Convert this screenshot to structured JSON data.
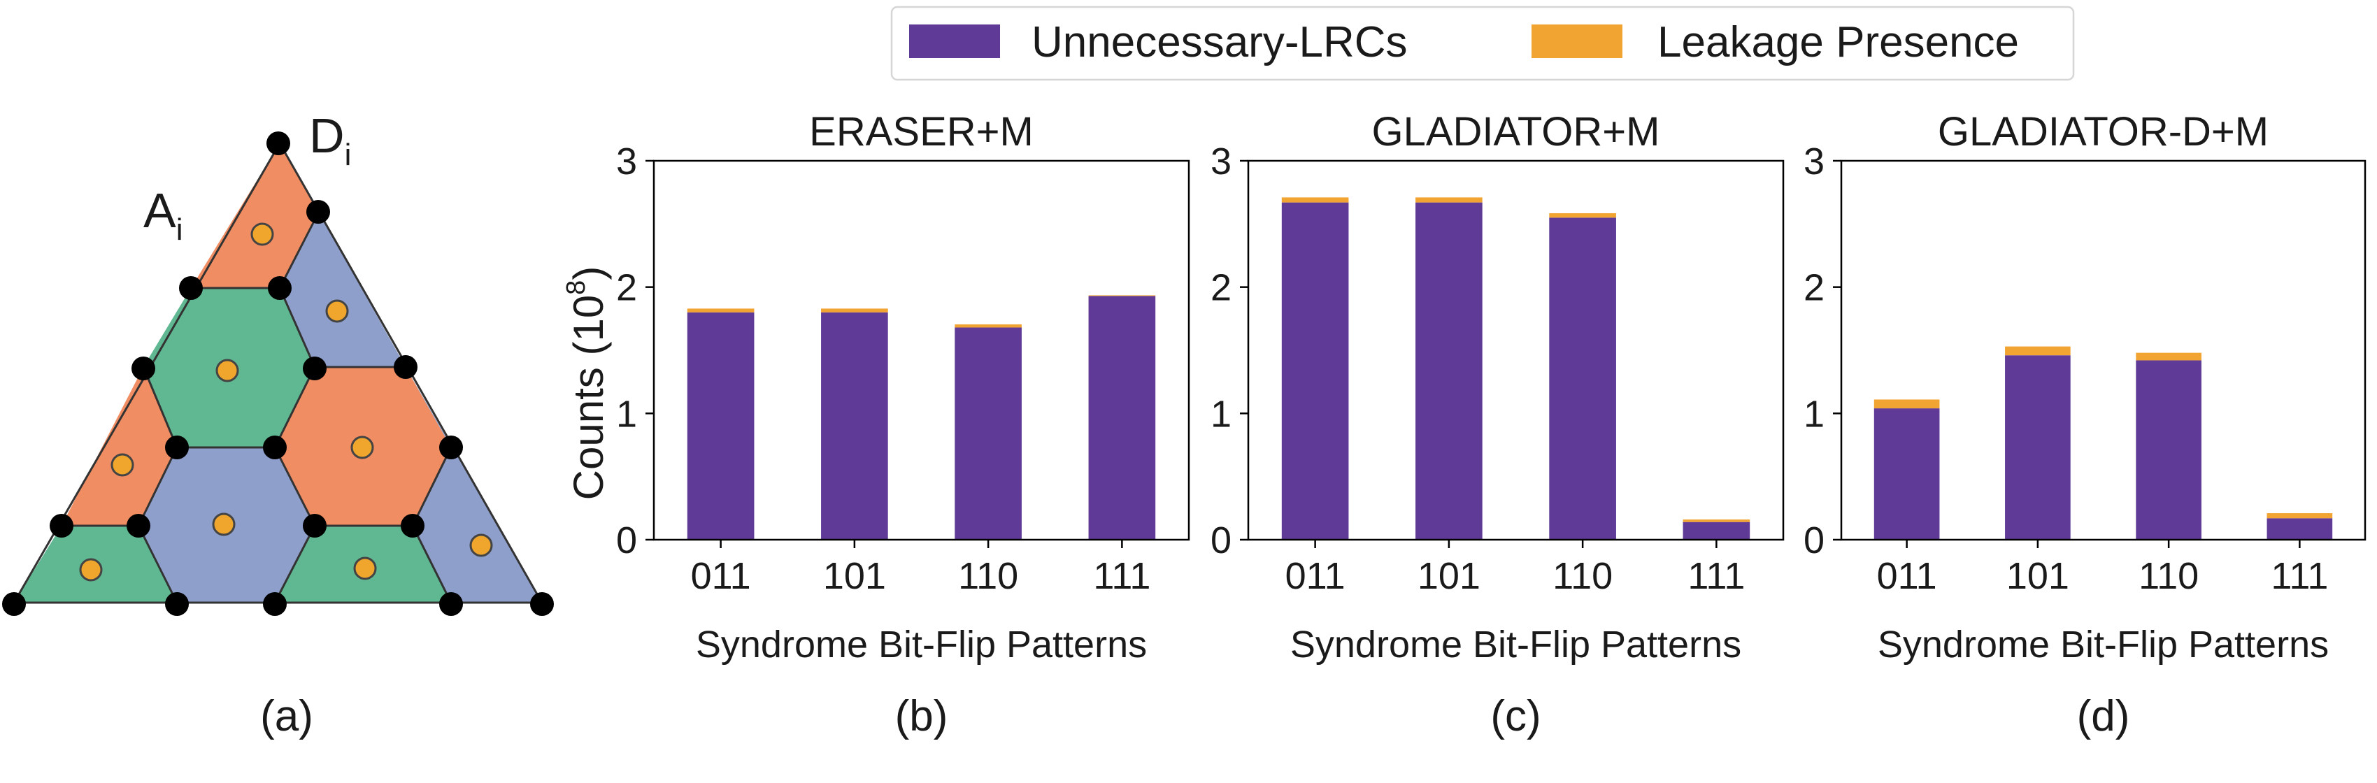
{
  "colors": {
    "unnecessary": "#5f3a97",
    "leakage": "#f2a433",
    "tri_orange": "#f18d62",
    "tri_green": "#5fb892",
    "tri_blue": "#8f9fcb",
    "qubit": "#f0a52c"
  },
  "legend": {
    "items": [
      {
        "label": "Unnecessary-LRCs",
        "color": "#5f3a97"
      },
      {
        "label": "Leakage Presence",
        "color": "#f2a433"
      }
    ]
  },
  "diagram": {
    "label_a": "A",
    "label_a_sub": "i",
    "label_d": "D",
    "label_d_sub": "i",
    "panel_label": "(a)"
  },
  "chart_data": [
    {
      "type": "bar",
      "stacked": true,
      "title": "ERASER+M",
      "xlabel": "Syndrome Bit-Flip Patterns",
      "ylabel": "Counts (10",
      "ylabel_sup": "8",
      "ylabel_close": ")",
      "panel_label": "(b)",
      "ylim": [
        0,
        3
      ],
      "yticks": [
        "0",
        "1",
        "2",
        "3"
      ],
      "categories": [
        "011",
        "101",
        "110",
        "111"
      ],
      "series": [
        {
          "name": "Unnecessary-LRCs",
          "values": [
            1.8,
            1.8,
            1.68,
            1.93
          ]
        },
        {
          "name": "Leakage Presence",
          "values": [
            0.03,
            0.03,
            0.025,
            0.005
          ]
        }
      ]
    },
    {
      "type": "bar",
      "stacked": true,
      "title": "GLADIATOR+M",
      "xlabel": "Syndrome Bit-Flip Patterns",
      "panel_label": "(c)",
      "ylim": [
        0,
        3
      ],
      "yticks": [
        "0",
        "1",
        "2",
        "3"
      ],
      "categories": [
        "011",
        "101",
        "110",
        "111"
      ],
      "series": [
        {
          "name": "Unnecessary-LRCs",
          "values": [
            2.67,
            2.67,
            2.55,
            0.14
          ]
        },
        {
          "name": "Leakage Presence",
          "values": [
            0.04,
            0.04,
            0.035,
            0.02
          ]
        }
      ]
    },
    {
      "type": "bar",
      "stacked": true,
      "title": "GLADIATOR-D+M",
      "xlabel": "Syndrome Bit-Flip Patterns",
      "panel_label": "(d)",
      "ylim": [
        0,
        3
      ],
      "yticks": [
        "0",
        "1",
        "2",
        "3"
      ],
      "categories": [
        "011",
        "101",
        "110",
        "111"
      ],
      "series": [
        {
          "name": "Unnecessary-LRCs",
          "values": [
            1.04,
            1.46,
            1.42,
            0.17
          ]
        },
        {
          "name": "Leakage Presence",
          "values": [
            0.07,
            0.07,
            0.06,
            0.04
          ]
        }
      ]
    }
  ]
}
